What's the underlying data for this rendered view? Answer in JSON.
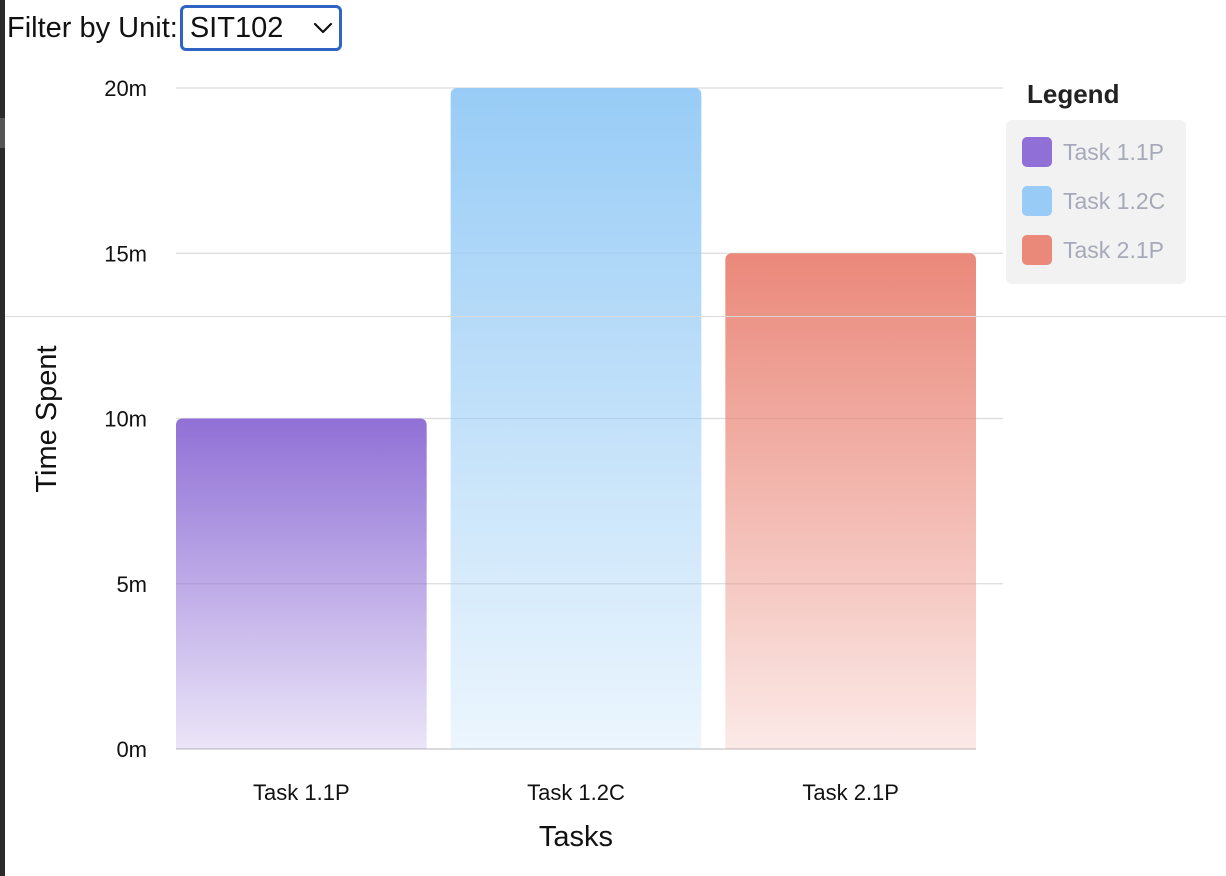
{
  "filter": {
    "label": "Filter by Unit:",
    "selected": "SIT102"
  },
  "legend": {
    "title": "Legend",
    "background": "#f2f2f2"
  },
  "chart_data": {
    "type": "bar",
    "categories": [
      "Task 1.1P",
      "Task 1.2C",
      "Task 2.1P"
    ],
    "values": [
      10,
      20,
      15
    ],
    "colors": [
      "#9070d6",
      "#98ccf6",
      "#ea887a"
    ],
    "xlabel": "Tasks",
    "ylabel": "Time Spent",
    "ylim": [
      0,
      20
    ],
    "yticks": [
      0,
      5,
      10,
      15,
      20
    ],
    "ytick_labels": [
      "0m",
      "5m",
      "10m",
      "15m",
      "20m"
    ],
    "grid": true,
    "legend_position": "top-right",
    "legend_entries": [
      "Task 1.1P",
      "Task 1.2C",
      "Task 2.1P"
    ]
  }
}
